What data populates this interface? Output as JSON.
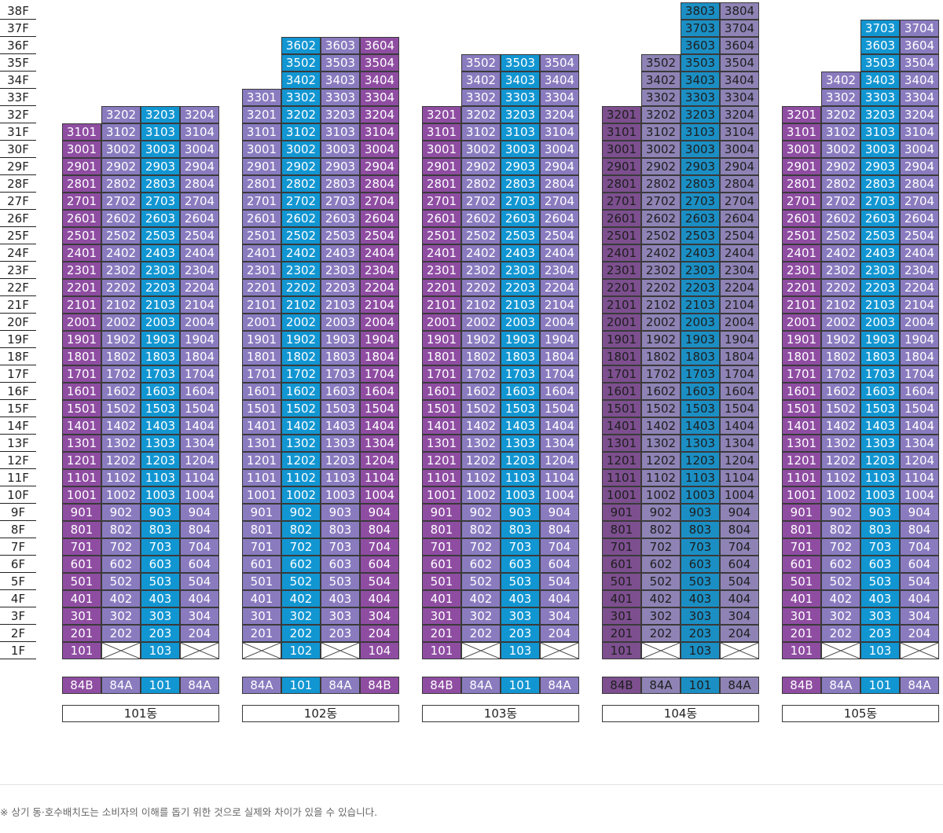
{
  "floors": [
    "38F",
    "37F",
    "36F",
    "35F",
    "34F",
    "33F",
    "32F",
    "31F",
    "30F",
    "29F",
    "28F",
    "27F",
    "26F",
    "25F",
    "24F",
    "23F",
    "22F",
    "21F",
    "20F",
    "19F",
    "18F",
    "17F",
    "16F",
    "15F",
    "14F",
    "13F",
    "12F",
    "11F",
    "10F",
    "9F",
    "8F",
    "7F",
    "6F",
    "5F",
    "4F",
    "3F",
    "2F",
    "1F"
  ],
  "colors": {
    "84B": "#8f4da2",
    "84A": "#8a7bbf",
    "101": "#1296d2",
    "muted_84B": "#7d4f8f",
    "muted_84A": "#8f83b5",
    "muted_101": "#1b8fc4",
    "muted_text": "#1e1e1e"
  },
  "buildings": [
    {
      "name": "101동",
      "types": [
        "84B",
        "84A",
        "101",
        "84A"
      ],
      "top_floor": [
        31,
        32,
        32,
        32
      ],
      "empty_first_floor": [
        false,
        true,
        false,
        true
      ],
      "muted": false
    },
    {
      "name": "102동",
      "types": [
        "84A",
        "101",
        "84A",
        "84B"
      ],
      "top_floor": [
        33,
        36,
        36,
        36
      ],
      "empty_first_floor": [
        true,
        false,
        true,
        false
      ],
      "muted": false
    },
    {
      "name": "103동",
      "types": [
        "84B",
        "84A",
        "101",
        "84A"
      ],
      "top_floor": [
        32,
        35,
        35,
        35
      ],
      "empty_first_floor": [
        false,
        true,
        false,
        true
      ],
      "muted": false
    },
    {
      "name": "104동",
      "types": [
        "84B",
        "84A",
        "101",
        "84A"
      ],
      "top_floor": [
        32,
        35,
        38,
        38
      ],
      "empty_first_floor": [
        false,
        true,
        false,
        true
      ],
      "muted": true
    },
    {
      "name": "105동",
      "types": [
        "84B",
        "84A",
        "101",
        "84A"
      ],
      "top_floor": [
        32,
        34,
        37,
        37
      ],
      "empty_first_floor": [
        false,
        true,
        false,
        true
      ],
      "muted": false
    }
  ],
  "footnote": "※ 상기 동·호수배치도는 소비자의 이해를 돕기 위한 것으로 실제와 차이가 있을 수 있습니다."
}
